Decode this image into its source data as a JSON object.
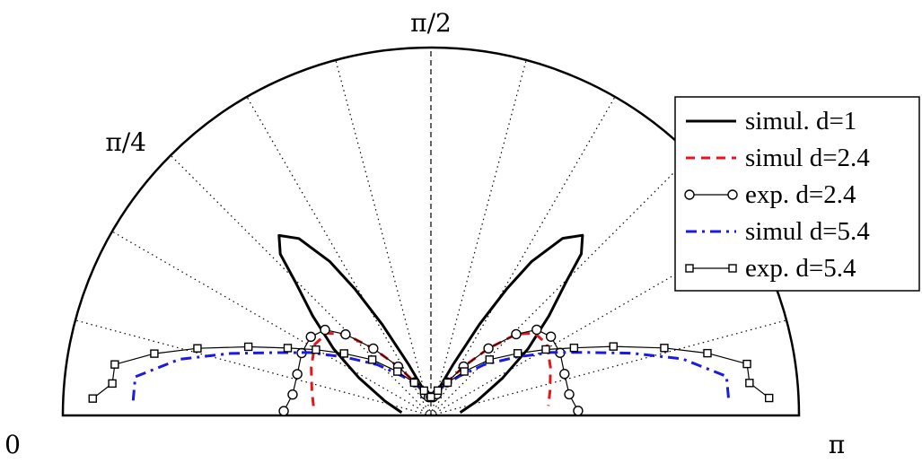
{
  "chart_data": {
    "type": "polar",
    "angular_range": [
      0,
      3.14159
    ],
    "angle_labels": [
      {
        "text": "0",
        "angle": 0
      },
      {
        "text": "π/4",
        "angle": 0.785
      },
      {
        "text": "π/2",
        "angle": 1.5708
      },
      {
        "text": "π",
        "angle": 3.14159
      }
    ],
    "grid": true,
    "grid_spoke_angles_deg": [
      15,
      30,
      45,
      60,
      75,
      105,
      120,
      135,
      150,
      165
    ],
    "r_max": 1.0,
    "legend_position": "top-right",
    "colors": {
      "simul_d1": "#000000",
      "simul_d24": "#e8141a",
      "exp_d24": "#000000",
      "simul_d54": "#1a1ae6",
      "exp_d54": "#000000"
    },
    "series": [
      {
        "name": "simul. d=1",
        "style": "solid",
        "points": [
          [
            0.1,
            0.08
          ],
          [
            0.3,
            0.13
          ],
          [
            0.48,
            0.22
          ],
          [
            0.6,
            0.32
          ],
          [
            0.7,
            0.42
          ],
          [
            0.78,
            0.52
          ],
          [
            0.82,
            0.6
          ],
          [
            0.87,
            0.64
          ],
          [
            0.93,
            0.6
          ],
          [
            0.99,
            0.5
          ],
          [
            1.03,
            0.4
          ],
          [
            1.08,
            0.28
          ],
          [
            1.16,
            0.15
          ],
          [
            1.3,
            0.07
          ],
          [
            1.57,
            0.04
          ],
          [
            1.84,
            0.07
          ],
          [
            1.98,
            0.15
          ],
          [
            2.06,
            0.28
          ],
          [
            2.11,
            0.4
          ],
          [
            2.15,
            0.5
          ],
          [
            2.21,
            0.6
          ],
          [
            2.27,
            0.64
          ],
          [
            2.32,
            0.6
          ],
          [
            2.36,
            0.52
          ],
          [
            2.44,
            0.42
          ],
          [
            2.54,
            0.32
          ],
          [
            2.66,
            0.22
          ],
          [
            2.84,
            0.13
          ],
          [
            3.04,
            0.08
          ]
        ]
      },
      {
        "name": "simul d=2.4",
        "style": "dashed",
        "points": [
          [
            0.08,
            0.32
          ],
          [
            0.2,
            0.33
          ],
          [
            0.38,
            0.35
          ],
          [
            0.55,
            0.37
          ],
          [
            0.67,
            0.36
          ],
          [
            0.76,
            0.32
          ],
          [
            0.86,
            0.24
          ],
          [
            0.98,
            0.16
          ],
          [
            1.12,
            0.1
          ],
          [
            1.3,
            0.06
          ],
          [
            1.57,
            0.04
          ],
          [
            1.84,
            0.06
          ],
          [
            2.02,
            0.1
          ],
          [
            2.16,
            0.16
          ],
          [
            2.28,
            0.24
          ],
          [
            2.38,
            0.32
          ],
          [
            2.47,
            0.36
          ],
          [
            2.59,
            0.37
          ],
          [
            2.76,
            0.35
          ],
          [
            2.94,
            0.33
          ],
          [
            3.06,
            0.32
          ]
        ]
      },
      {
        "name": "exp. d=2.4",
        "style": "line-circle",
        "points": [
          [
            0.03,
            0.4
          ],
          [
            0.15,
            0.38
          ],
          [
            0.3,
            0.38
          ],
          [
            0.45,
            0.39
          ],
          [
            0.58,
            0.39
          ],
          [
            0.68,
            0.37
          ],
          [
            0.76,
            0.32
          ],
          [
            0.86,
            0.24
          ],
          [
            0.98,
            0.16
          ],
          [
            1.12,
            0.1
          ],
          [
            1.3,
            0.06
          ],
          [
            1.45,
            0.05
          ],
          [
            1.57,
            0.05
          ],
          [
            1.69,
            0.05
          ],
          [
            1.84,
            0.06
          ],
          [
            2.02,
            0.1
          ],
          [
            2.16,
            0.16
          ],
          [
            2.28,
            0.24
          ],
          [
            2.38,
            0.32
          ],
          [
            2.46,
            0.37
          ],
          [
            2.56,
            0.39
          ],
          [
            2.69,
            0.39
          ],
          [
            2.84,
            0.38
          ],
          [
            2.99,
            0.38
          ],
          [
            3.11,
            0.4
          ]
        ]
      },
      {
        "name": "simul d=5.4",
        "style": "dashdot",
        "points": [
          [
            0.05,
            0.81
          ],
          [
            0.13,
            0.81
          ],
          [
            0.22,
            0.7
          ],
          [
            0.3,
            0.57
          ],
          [
            0.38,
            0.46
          ],
          [
            0.48,
            0.37
          ],
          [
            0.6,
            0.28
          ],
          [
            0.76,
            0.2
          ],
          [
            0.95,
            0.13
          ],
          [
            1.2,
            0.08
          ],
          [
            1.57,
            0.05
          ],
          [
            1.94,
            0.08
          ],
          [
            2.19,
            0.13
          ],
          [
            2.38,
            0.2
          ],
          [
            2.54,
            0.28
          ],
          [
            2.66,
            0.37
          ],
          [
            2.76,
            0.46
          ],
          [
            2.84,
            0.57
          ],
          [
            2.92,
            0.7
          ],
          [
            3.01,
            0.81
          ],
          [
            3.09,
            0.81
          ]
        ]
      },
      {
        "name": "exp. d=5.4",
        "style": "line-square",
        "points": [
          [
            0.05,
            0.92
          ],
          [
            0.1,
            0.87
          ],
          [
            0.16,
            0.87
          ],
          [
            0.22,
            0.77
          ],
          [
            0.28,
            0.66
          ],
          [
            0.36,
            0.53
          ],
          [
            0.44,
            0.43
          ],
          [
            0.52,
            0.36
          ],
          [
            0.62,
            0.29
          ],
          [
            0.76,
            0.22
          ],
          [
            0.92,
            0.15
          ],
          [
            1.1,
            0.1
          ],
          [
            1.3,
            0.07
          ],
          [
            1.57,
            0.05
          ],
          [
            1.84,
            0.07
          ],
          [
            2.04,
            0.1
          ],
          [
            2.22,
            0.15
          ],
          [
            2.38,
            0.22
          ],
          [
            2.52,
            0.29
          ],
          [
            2.62,
            0.36
          ],
          [
            2.7,
            0.43
          ],
          [
            2.78,
            0.53
          ],
          [
            2.86,
            0.66
          ],
          [
            2.92,
            0.77
          ],
          [
            2.98,
            0.87
          ],
          [
            3.04,
            0.87
          ],
          [
            3.09,
            0.92
          ]
        ]
      }
    ]
  }
}
